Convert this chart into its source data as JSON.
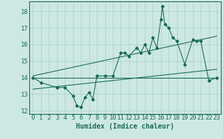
{
  "xlabel": "Humidex (Indice chaleur)",
  "xlim": [
    -0.5,
    23.5
  ],
  "ylim": [
    11.8,
    18.6
  ],
  "xticks": [
    0,
    1,
    2,
    3,
    4,
    5,
    6,
    7,
    8,
    9,
    10,
    11,
    12,
    13,
    14,
    15,
    16,
    17,
    18,
    19,
    20,
    21,
    22,
    23
  ],
  "yticks": [
    12,
    13,
    14,
    15,
    16,
    17,
    18
  ],
  "bg_color": "#cde8e2",
  "grid_color": "#a8d4cc",
  "line_color": "#1a6b5a",
  "main_x": [
    0,
    1,
    3,
    4,
    5,
    5.5,
    6,
    6.5,
    7,
    7.5,
    8,
    9,
    10,
    11,
    11.5,
    12,
    13,
    13.5,
    14,
    14.5,
    15,
    15.5,
    16,
    16.2,
    16.5,
    17,
    17.5,
    18,
    19,
    20,
    20.5,
    21,
    22,
    23
  ],
  "main_y": [
    14.0,
    13.7,
    13.4,
    13.4,
    12.9,
    12.3,
    12.2,
    12.8,
    13.1,
    12.7,
    14.1,
    14.1,
    14.1,
    15.5,
    15.5,
    15.3,
    15.8,
    15.5,
    16.0,
    15.5,
    16.4,
    15.8,
    17.5,
    18.3,
    17.2,
    17.0,
    16.4,
    16.2,
    14.8,
    16.3,
    16.2,
    16.2,
    13.8,
    14.0
  ],
  "line2_x": [
    0,
    23
  ],
  "line2_y": [
    14.1,
    16.5
  ],
  "line3_x": [
    0,
    23
  ],
  "line3_y": [
    13.3,
    14.5
  ],
  "line4_x": [
    0,
    23
  ],
  "line4_y": [
    14.0,
    14.0
  ],
  "xlabel_fontsize": 7,
  "tick_fontsize": 6.5
}
